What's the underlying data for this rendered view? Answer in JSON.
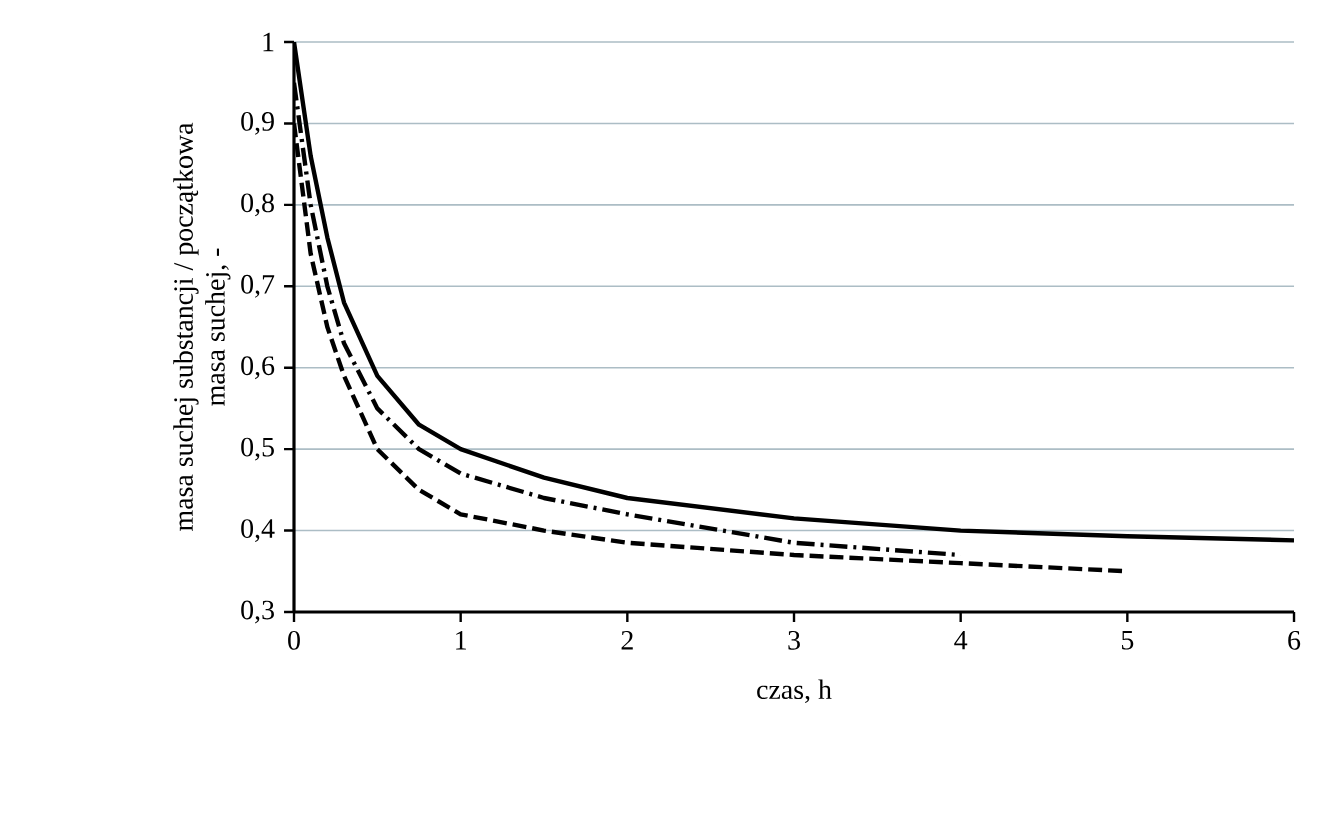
{
  "chart_data": {
    "type": "line",
    "xlabel": "czas, h",
    "ylabel": "masa suchej substancji / początkowa masa suchej, -",
    "xlim": [
      0,
      6
    ],
    "ylim": [
      0.3,
      1
    ],
    "xticks": [
      0,
      1,
      2,
      3,
      4,
      5,
      6
    ],
    "yticks": [
      {
        "value": 0.3,
        "label": "0,3"
      },
      {
        "value": 0.4,
        "label": "0,4"
      },
      {
        "value": 0.5,
        "label": "0,5"
      },
      {
        "value": 0.6,
        "label": "0,6"
      },
      {
        "value": 0.7,
        "label": "0,7"
      },
      {
        "value": 0.8,
        "label": "0,8"
      },
      {
        "value": 0.9,
        "label": "0,9"
      },
      1
    ],
    "grid": "y",
    "series": [
      {
        "color": "#000000",
        "line_style": "solid",
        "x": [
          0,
          0.1,
          0.2,
          0.3,
          0.5,
          0.75,
          1,
          1.5,
          2,
          3,
          4,
          5,
          6
        ],
        "values": [
          1,
          0.86,
          0.76,
          0.68,
          0.59,
          0.53,
          0.5,
          0.465,
          0.44,
          0.415,
          0.4,
          0.393,
          0.388
        ]
      },
      {
        "color": "#000000",
        "line_style": "dashdot",
        "x": [
          0,
          0.1,
          0.2,
          0.3,
          0.5,
          0.75,
          1,
          1.5,
          2,
          3,
          4
        ],
        "values": [
          0.95,
          0.8,
          0.7,
          0.63,
          0.55,
          0.5,
          0.47,
          0.44,
          0.42,
          0.385,
          0.37
        ]
      },
      {
        "color": "#000000",
        "line_style": "dashed",
        "x": [
          0,
          0.1,
          0.2,
          0.3,
          0.5,
          0.75,
          1,
          1.5,
          2,
          3,
          4,
          5
        ],
        "values": [
          0.9,
          0.74,
          0.65,
          0.59,
          0.5,
          0.45,
          0.42,
          0.4,
          0.385,
          0.37,
          0.36,
          0.35
        ]
      }
    ]
  }
}
